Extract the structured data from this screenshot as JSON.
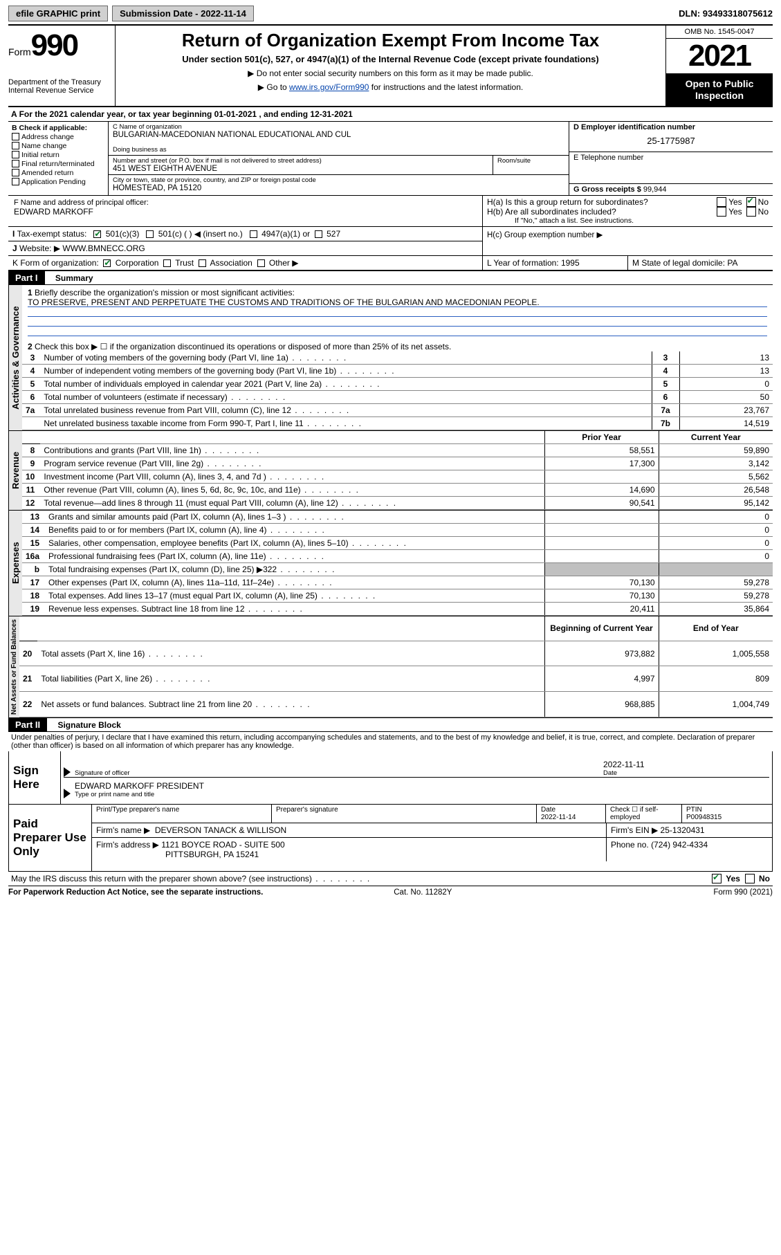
{
  "topbar": {
    "efile": "efile GRAPHIC print",
    "submission_label": "Submission Date - 2022-11-14",
    "dln": "DLN: 93493318075612"
  },
  "header": {
    "form_prefix": "Form",
    "form_number": "990",
    "dept": "Department of the Treasury",
    "irs": "Internal Revenue Service",
    "title": "Return of Organization Exempt From Income Tax",
    "subtitle": "Under section 501(c), 527, or 4947(a)(1) of the Internal Revenue Code (except private foundations)",
    "note1": "▶ Do not enter social security numbers on this form as it may be made public.",
    "note2_pre": "▶ Go to ",
    "note2_link": "www.irs.gov/Form990",
    "note2_post": " for instructions and the latest information.",
    "omb": "OMB No. 1545-0047",
    "year": "2021",
    "inspect": "Open to Public Inspection"
  },
  "period": "For the 2021 calendar year, or tax year beginning 01-01-2021   , and ending 12-31-2021",
  "boxB": {
    "title": "B Check if applicable:",
    "items": [
      "Address change",
      "Name change",
      "Initial return",
      "Final return/terminated",
      "Amended return",
      "Application Pending"
    ]
  },
  "boxC": {
    "name_lbl": "C Name of organization",
    "name": "BULGARIAN-MACEDONIAN NATIONAL EDUCATIONAL AND CUL",
    "dba_lbl": "Doing business as",
    "addr_lbl": "Number and street (or P.O. box if mail is not delivered to street address)",
    "room_lbl": "Room/suite",
    "addr": "451 WEST EIGHTH AVENUE",
    "city_lbl": "City or town, state or province, country, and ZIP or foreign postal code",
    "city": "HOMESTEAD, PA  15120"
  },
  "boxD": {
    "lbl": "D Employer identification number",
    "val": "25-1775987"
  },
  "boxE": {
    "lbl": "E Telephone number",
    "val": ""
  },
  "boxG": {
    "lbl": "G Gross receipts $",
    "val": "99,944"
  },
  "boxF": {
    "lbl": "F  Name and address of principal officer:",
    "val": "EDWARD MARKOFF"
  },
  "boxH": {
    "a": "H(a)  Is this a group return for subordinates?",
    "b": "H(b)  Are all subordinates included?",
    "b_note": "If \"No,\" attach a list. See instructions.",
    "c": "H(c)  Group exemption number ▶",
    "yes": "Yes",
    "no": "No"
  },
  "boxI": {
    "lbl": "Tax-exempt status:",
    "o1": "501(c)(3)",
    "o2": "501(c) (  ) ◀ (insert no.)",
    "o3": "4947(a)(1) or",
    "o4": "527"
  },
  "boxJ": {
    "lbl": "Website: ▶",
    "val": "WWW.BMNECC.ORG"
  },
  "boxK": {
    "lbl": "K Form of organization:",
    "o1": "Corporation",
    "o2": "Trust",
    "o3": "Association",
    "o4": "Other ▶"
  },
  "boxL": {
    "lbl": "L Year of formation: 1995"
  },
  "boxM": {
    "lbl": "M State of legal domicile: PA"
  },
  "part1": {
    "title": "Part I",
    "sub": "Summary",
    "l1": "Briefly describe the organization's mission or most significant activities:",
    "mission": "TO PRESERVE, PRESENT AND PERPETUATE THE CUSTOMS AND TRADITIONS OF THE BULGARIAN AND MACEDONIAN PEOPLE.",
    "l2": "Check this box ▶ ☐  if the organization discontinued its operations or disposed of more than 25% of its net assets.",
    "rows_ag": [
      {
        "n": "3",
        "t": "Number of voting members of the governing body (Part VI, line 1a)",
        "r": "3",
        "v": "13"
      },
      {
        "n": "4",
        "t": "Number of independent voting members of the governing body (Part VI, line 1b)",
        "r": "4",
        "v": "13"
      },
      {
        "n": "5",
        "t": "Total number of individuals employed in calendar year 2021 (Part V, line 2a)",
        "r": "5",
        "v": "0"
      },
      {
        "n": "6",
        "t": "Total number of volunteers (estimate if necessary)",
        "r": "6",
        "v": "50"
      },
      {
        "n": "7a",
        "t": "Total unrelated business revenue from Part VIII, column (C), line 12",
        "r": "7a",
        "v": "23,767"
      },
      {
        "n": "",
        "t": "Net unrelated business taxable income from Form 990-T, Part I, line 11",
        "r": "7b",
        "v": "14,519"
      }
    ],
    "hdr_prior": "Prior Year",
    "hdr_curr": "Current Year",
    "rows_rev": [
      {
        "n": "8",
        "t": "Contributions and grants (Part VIII, line 1h)",
        "p": "58,551",
        "c": "59,890"
      },
      {
        "n": "9",
        "t": "Program service revenue (Part VIII, line 2g)",
        "p": "17,300",
        "c": "3,142"
      },
      {
        "n": "10",
        "t": "Investment income (Part VIII, column (A), lines 3, 4, and 7d )",
        "p": "",
        "c": "5,562"
      },
      {
        "n": "11",
        "t": "Other revenue (Part VIII, column (A), lines 5, 6d, 8c, 9c, 10c, and 11e)",
        "p": "14,690",
        "c": "26,548"
      },
      {
        "n": "12",
        "t": "Total revenue—add lines 8 through 11 (must equal Part VIII, column (A), line 12)",
        "p": "90,541",
        "c": "95,142"
      }
    ],
    "rows_exp": [
      {
        "n": "13",
        "t": "Grants and similar amounts paid (Part IX, column (A), lines 1–3 )",
        "p": "",
        "c": "0"
      },
      {
        "n": "14",
        "t": "Benefits paid to or for members (Part IX, column (A), line 4)",
        "p": "",
        "c": "0"
      },
      {
        "n": "15",
        "t": "Salaries, other compensation, employee benefits (Part IX, column (A), lines 5–10)",
        "p": "",
        "c": "0"
      },
      {
        "n": "16a",
        "t": "Professional fundraising fees (Part IX, column (A), line 11e)",
        "p": "",
        "c": "0"
      },
      {
        "n": "b",
        "t": "Total fundraising expenses (Part IX, column (D), line 25) ▶322",
        "p": "gray",
        "c": "gray"
      },
      {
        "n": "17",
        "t": "Other expenses (Part IX, column (A), lines 11a–11d, 11f–24e)",
        "p": "70,130",
        "c": "59,278"
      },
      {
        "n": "18",
        "t": "Total expenses. Add lines 13–17 (must equal Part IX, column (A), line 25)",
        "p": "70,130",
        "c": "59,278"
      },
      {
        "n": "19",
        "t": "Revenue less expenses. Subtract line 18 from line 12",
        "p": "20,411",
        "c": "35,864"
      }
    ],
    "hdr_beg": "Beginning of Current Year",
    "hdr_end": "End of Year",
    "rows_na": [
      {
        "n": "20",
        "t": "Total assets (Part X, line 16)",
        "p": "973,882",
        "c": "1,005,558"
      },
      {
        "n": "21",
        "t": "Total liabilities (Part X, line 26)",
        "p": "4,997",
        "c": "809"
      },
      {
        "n": "22",
        "t": "Net assets or fund balances. Subtract line 21 from line 20",
        "p": "968,885",
        "c": "1,004,749"
      }
    ],
    "side_ag": "Activities & Governance",
    "side_rev": "Revenue",
    "side_exp": "Expenses",
    "side_na": "Net Assets or Fund Balances"
  },
  "part2": {
    "title": "Part II",
    "sub": "Signature Block",
    "decl": "Under penalties of perjury, I declare that I have examined this return, including accompanying schedules and statements, and to the best of my knowledge and belief, it is true, correct, and complete. Declaration of preparer (other than officer) is based on all information of which preparer has any knowledge.",
    "sign_here": "Sign Here",
    "sig_officer": "Signature of officer",
    "sig_date": "2022-11-11",
    "date_lbl": "Date",
    "officer_name": "EDWARD MARKOFF  PRESIDENT",
    "name_lbl": "Type or print name and title",
    "paid": "Paid Preparer Use Only",
    "prep_name_lbl": "Print/Type preparer's name",
    "prep_sig_lbl": "Preparer's signature",
    "prep_date_lbl": "Date",
    "prep_date": "2022-11-14",
    "prep_check_lbl": "Check ☐ if self-employed",
    "ptin_lbl": "PTIN",
    "ptin": "P00948315",
    "firm_name_lbl": "Firm's name   ▶",
    "firm_name": "DEVERSON TANACK & WILLISON",
    "firm_ein_lbl": "Firm's EIN ▶",
    "firm_ein": "25-1320431",
    "firm_addr_lbl": "Firm's address ▶",
    "firm_addr1": "1121 BOYCE ROAD - SUITE 500",
    "firm_addr2": "PITTSBURGH, PA  15241",
    "phone_lbl": "Phone no.",
    "phone": "(724) 942-4334",
    "discuss": "May the IRS discuss this return with the preparer shown above? (see instructions)",
    "paperwork": "For Paperwork Reduction Act Notice, see the separate instructions.",
    "cat": "Cat. No. 11282Y",
    "formno": "Form 990 (2021)"
  }
}
